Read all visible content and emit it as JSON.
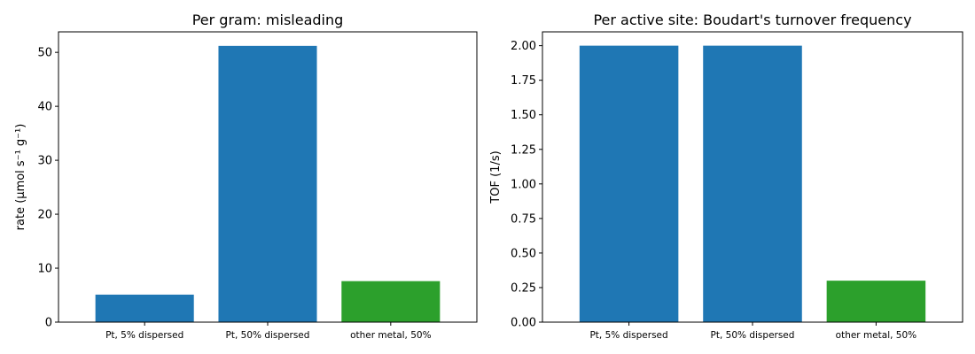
{
  "colors": {
    "blue": "#1f77b4",
    "green": "#2ca02c"
  },
  "chart_data": [
    {
      "type": "bar",
      "title": "Per gram: misleading",
      "xlabel": "",
      "ylabel": "rate (μmol s⁻¹ g⁻¹)",
      "categories": [
        "Pt, 5% dispersed",
        "Pt, 50% dispersed",
        "other metal, 50%"
      ],
      "values": [
        5.1,
        51.2,
        7.6
      ],
      "bar_colors": [
        "#1f77b4",
        "#1f77b4",
        "#2ca02c"
      ],
      "ylim": [
        0,
        53.8
      ],
      "yticks": [
        0,
        10,
        20,
        30,
        40,
        50
      ],
      "ytick_labels": [
        "0",
        "10",
        "20",
        "30",
        "40",
        "50"
      ],
      "grid": false
    },
    {
      "type": "bar",
      "title": "Per active site: Boudart's turnover frequency",
      "xlabel": "",
      "ylabel": "TOF (1/s)",
      "categories": [
        "Pt, 5% dispersed",
        "Pt, 50% dispersed",
        "other metal, 50%"
      ],
      "values": [
        2.0,
        2.0,
        0.3
      ],
      "bar_colors": [
        "#1f77b4",
        "#1f77b4",
        "#2ca02c"
      ],
      "ylim": [
        0,
        2.1
      ],
      "yticks": [
        0,
        0.25,
        0.5,
        0.75,
        1.0,
        1.25,
        1.5,
        1.75,
        2.0
      ],
      "ytick_labels": [
        "0.00",
        "0.25",
        "0.50",
        "0.75",
        "1.00",
        "1.25",
        "1.50",
        "1.75",
        "2.00"
      ],
      "grid": false
    }
  ]
}
